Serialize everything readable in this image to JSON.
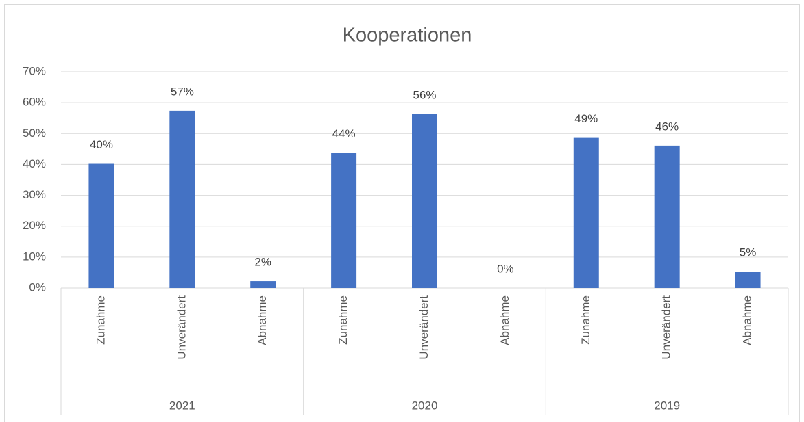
{
  "chart_data": {
    "type": "bar",
    "title": "Kooperationen",
    "categories": [
      "Zunahme",
      "Unverändert",
      "Abnahme",
      "Zunahme",
      "Unverändert",
      "Abnahme",
      "Zunahme",
      "Unverändert",
      "Abnahme"
    ],
    "category_groups": [
      "2021",
      "2020",
      "2019"
    ],
    "values": [
      40.2,
      57.4,
      2.2,
      43.7,
      56.3,
      0,
      48.6,
      46.1,
      5.3
    ],
    "value_labels": [
      "40%",
      "57%",
      "2%",
      "44%",
      "56%",
      "0%",
      "49%",
      "46%",
      "5%"
    ],
    "color": "#4472c4",
    "ylim": [
      0,
      70
    ],
    "yticks": [
      {
        "value": 0,
        "label": "0%"
      },
      {
        "value": 10,
        "label": "10%"
      },
      {
        "value": 20,
        "label": "20%"
      },
      {
        "value": 30,
        "label": "30%"
      },
      {
        "value": 40,
        "label": "40%"
      },
      {
        "value": 50,
        "label": "50%"
      },
      {
        "value": 60,
        "label": "60%"
      },
      {
        "value": 70,
        "label": "70%"
      }
    ],
    "grid": true
  }
}
